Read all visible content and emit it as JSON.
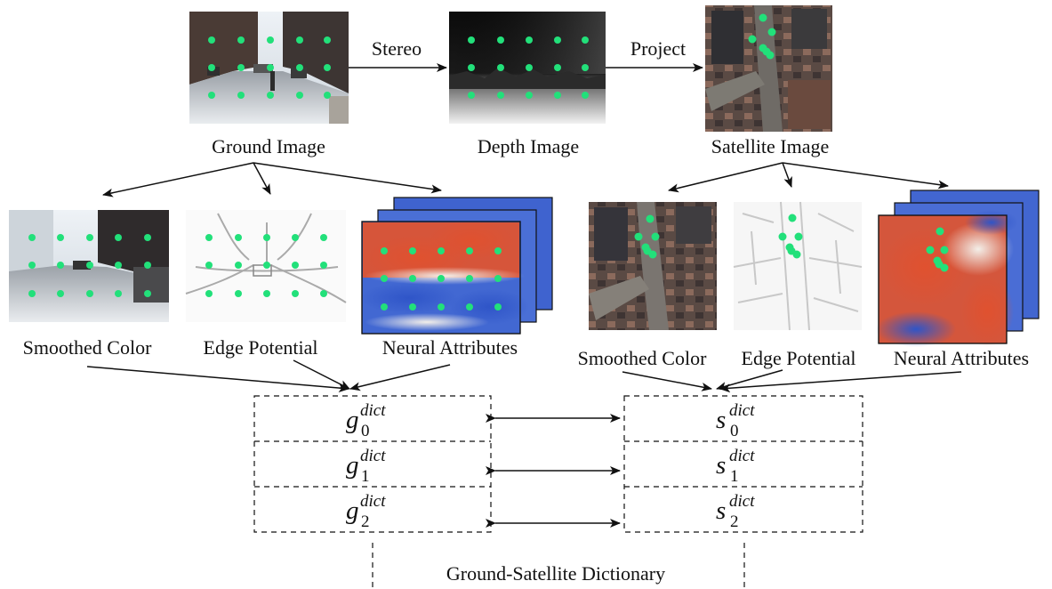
{
  "colors": {
    "keypoint": "#22e07a",
    "sky": "#dfe6ec",
    "road": "#8e939a",
    "building": "#4b3a36",
    "heat_red": "#d8452e",
    "heat_blue": "#3b5fc9"
  },
  "top_row": {
    "ground_image": "Ground Image",
    "depth_image": "Depth Image",
    "satellite_image": "Satellite Image",
    "stereo_arrow": "Stereo",
    "project_arrow": "Project"
  },
  "ground_features": {
    "smoothed_color": "Smoothed Color",
    "edge_potential": "Edge Potential",
    "neural_attributes": "Neural Attributes"
  },
  "satellite_features": {
    "smoothed_color": "Smoothed Color",
    "edge_potential": "Edge Potential",
    "neural_attributes": "Neural Attributes"
  },
  "dictionary": {
    "title": "Ground-Satellite Dictionary",
    "ground_entries": [
      {
        "base": "g",
        "sub": "0",
        "sup": "dict"
      },
      {
        "base": "g",
        "sub": "1",
        "sup": "dict"
      },
      {
        "base": "g",
        "sub": "2",
        "sup": "dict"
      }
    ],
    "satellite_entries": [
      {
        "base": "s",
        "sub": "0",
        "sup": "dict"
      },
      {
        "base": "s",
        "sub": "1",
        "sup": "dict"
      },
      {
        "base": "s",
        "sub": "2",
        "sup": "dict"
      }
    ]
  }
}
